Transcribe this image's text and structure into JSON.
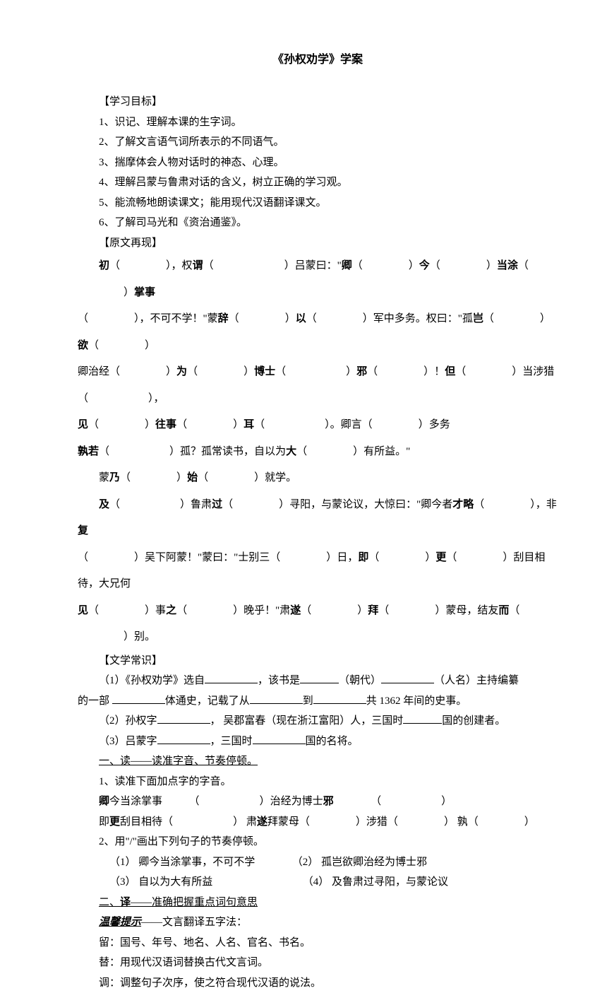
{
  "title": "《孙权劝学》学案",
  "objectives": {
    "label": "【学习目标】",
    "items": [
      "1、识记、理解本课的生字词。",
      "2、了解文言语气词所表示的不同语气。",
      "3、揣摩体会人物对话时的神态、心理。",
      "4、理解吕蒙与鲁肃对话的含义，树立正确的学习观。",
      "5、能流畅地朗读课文；能用现代汉语翻译课文。",
      "6、了解司马光和《资治通鉴》。"
    ]
  },
  "original": {
    "label": "【原文再现】"
  },
  "passage": {
    "p1_a": "初",
    "p1_b": "，权",
    "p1_c": "谓",
    "p1_d": "吕蒙曰：\"",
    "p1_e": "卿",
    "p1_f": "今",
    "p1_g": "当涂",
    "p1_h": "掌事",
    "p2_a": "，不可不学！\"蒙",
    "p2_b": "辞",
    "p2_c": "以",
    "p2_d": "军中多务。权曰：\"孤",
    "p2_e": "岂",
    "p2_f": "欲",
    "p3_a": "卿治经",
    "p3_b": "为",
    "p3_c": "博士",
    "p3_d": "邪",
    "p3_e": "！",
    "p3_f": "但",
    "p3_g": "当涉猎",
    "p3_h": "，",
    "p4_a": "见",
    "p4_b": "往事",
    "p4_c": "耳",
    "p4_d": "。卿言",
    "p4_e": "多务",
    "p5_a": "孰若",
    "p5_b": "孤？孤常读书，自以为",
    "p5_c": "大",
    "p5_d": "有所益。\"",
    "p6_a": "蒙",
    "p6_b": "乃",
    "p6_c": "始",
    "p6_d": "就学。",
    "p7_a": "及",
    "p7_b": "鲁肃",
    "p7_c": "过",
    "p7_d": "寻阳，与蒙论议，大惊曰：\"卿今者",
    "p7_e": "才略",
    "p7_f": "，非",
    "p7_g": "复",
    "p8_a": "吴下阿蒙！\"蒙曰：\"士别三",
    "p8_b": "日，",
    "p8_c": "即",
    "p8_d": "更",
    "p8_e": "刮目相待，大兄何",
    "p9_a": "见",
    "p9_b": "事",
    "p9_c": "之",
    "p9_d": "晚乎！\"肃",
    "p9_e": "遂",
    "p9_f": "拜",
    "p9_g": "蒙母，结友",
    "p9_h": "而",
    "p9_i": "别。"
  },
  "literature": {
    "label": "【文学常识】",
    "q1_a": "（1）《孙权劝学》选自",
    "q1_b": "，该书是",
    "q1_c": "（朝代）",
    "q1_d": "（人名）主持编纂",
    "q1_e": "的一部",
    "q1_f": "体通史，记载了从",
    "q1_g": "到",
    "q1_h": "共 1362 年间的史事。",
    "q2_a": "（2）孙权字",
    "q2_b": "， 吴郡富春（现在浙江富阳）人，三国时",
    "q2_c": "国的创建者。",
    "q3_a": "（3）吕蒙字",
    "q3_b": "，三国时",
    "q3_c": "国的名将。"
  },
  "reading": {
    "label": "一、读——读准字音、节奏停顿。",
    "sub1": "1、读准下面加点字的字音。",
    "line1_a": "卿",
    "line1_b": "今当涂掌事",
    "line1_c": "治经为博士",
    "line1_d": "邪",
    "line2_a": "即",
    "line2_b": "更",
    "line2_c": "刮目相待",
    "line2_d": "肃",
    "line2_e": "遂",
    "line2_f": "拜蒙母",
    "line2_g": "涉猎",
    "line2_h": "孰",
    "sub2": "2、用\"/\"画出下列句子的节奏停顿。",
    "ex1": "（1） 卿今当涂掌事，不可不学",
    "ex2": "（2） 孤岂欲卿治经为博士邪",
    "ex3": "（3） 自以为大有所益",
    "ex4": "（4） 及鲁肃过寻阳，与蒙论议"
  },
  "translate": {
    "label_a": "二、",
    "label_b": "译",
    "label_c": "——准确把握重点词句意思",
    "tip_label": "温馨提示",
    "tip_suffix": "——文言翻译五字法：",
    "t1": "留：国号、年号、地名、人名、官名、书名。",
    "t2": "替：用现代汉语词替换古代文言词。",
    "t3": "调：调整句子次序，使之符合现代汉语的说法。"
  }
}
